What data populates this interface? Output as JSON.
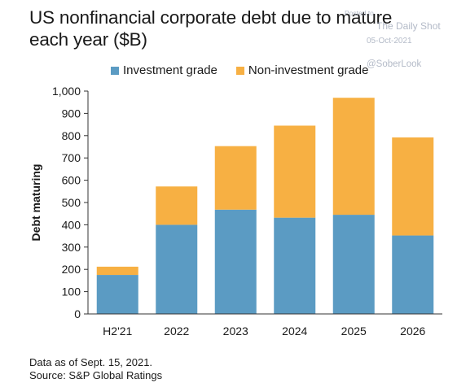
{
  "title": "US nonfinancial corporate debt due to mature each year ($B)",
  "watermark": {
    "registered": "Posted to",
    "name": "The Daily Shot",
    "date": "05-Oct-2021",
    "handle": "@SoberLook"
  },
  "footnote": {
    "line1": "Data as of Sept. 15, 2021.",
    "line2": "Source: S&P Global Ratings"
  },
  "colors": {
    "investment_grade": "#5b9bc3",
    "non_investment_grade": "#f7b043",
    "axis": "#333333"
  },
  "chart_data": {
    "type": "bar",
    "stacked": true,
    "title": "US nonfinancial corporate debt due to mature each year ($B)",
    "xlabel": "",
    "ylabel": "Debt maturing",
    "ylim": [
      0,
      1000
    ],
    "yticks": [
      0,
      100,
      200,
      300,
      400,
      500,
      600,
      700,
      800,
      900,
      1000
    ],
    "ytick_labels": [
      "0",
      "100",
      "200",
      "300",
      "400",
      "500",
      "600",
      "700",
      "800",
      "900",
      "1,000"
    ],
    "categories": [
      "H2'21",
      "2022",
      "2023",
      "2024",
      "2025",
      "2026"
    ],
    "series": [
      {
        "name": "Investment grade",
        "values": [
          175,
          400,
          468,
          432,
          445,
          352
        ]
      },
      {
        "name": "Non-investment grade",
        "values": [
          37,
          172,
          285,
          413,
          525,
          440
        ]
      }
    ],
    "legend": "top",
    "grid": false
  }
}
